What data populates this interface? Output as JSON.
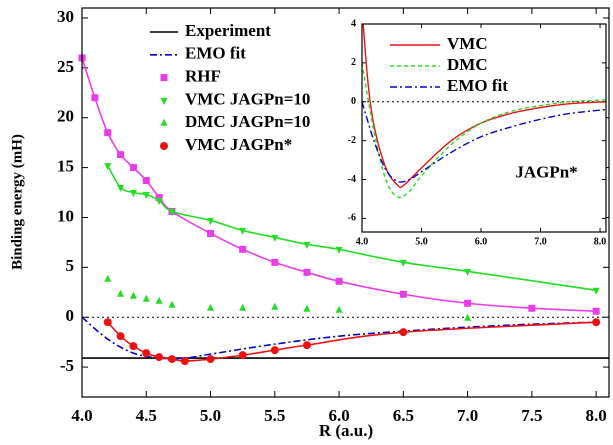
{
  "chart_data": [
    {
      "type": "line",
      "x_label": "R (a.u.)",
      "y_label": "Binding energy (mH)",
      "xlim": [
        4.0,
        8.1
      ],
      "ylim": [
        -8,
        31
      ],
      "xticks": [
        {
          "value": 4.0,
          "label": "4.0"
        },
        {
          "value": 4.5,
          "label": "4.5"
        },
        {
          "value": 5.0,
          "label": "5.0"
        },
        {
          "value": 5.5,
          "label": "5.5"
        },
        {
          "value": 6.0,
          "label": "6.0"
        },
        {
          "value": 6.5,
          "label": "6.5"
        },
        {
          "value": 7.0,
          "label": "7.0"
        },
        {
          "value": 7.5,
          "label": "7.5"
        },
        {
          "value": 8.0,
          "label": "8.0"
        }
      ],
      "yticks": [
        -5,
        0,
        5,
        10,
        15,
        20,
        25,
        30
      ],
      "legend": "upper left",
      "series": [
        {
          "name": "Experiment",
          "color": "#000000",
          "line": "solid",
          "marker": "none",
          "x": [
            4.0,
            8.1
          ],
          "values": [
            -4.1,
            -4.1
          ]
        },
        {
          "name": "EMO fit",
          "color": "#0000cc",
          "line": "dash-dot",
          "marker": "none",
          "x": [
            4.0,
            4.2,
            4.4,
            4.6,
            4.8,
            5.0,
            5.5,
            6.0,
            6.5,
            7.0,
            7.5,
            8.0
          ],
          "values": [
            0.0,
            -2.2,
            -3.6,
            -4.1,
            -4.1,
            -3.7,
            -2.7,
            -1.9,
            -1.4,
            -1.0,
            -0.7,
            -0.5
          ]
        },
        {
          "name": "RHF",
          "color": "#e83ce8",
          "line": "solid",
          "marker": "square",
          "x": [
            4.0,
            4.1,
            4.2,
            4.3,
            4.4,
            4.5,
            4.6,
            4.7,
            5.0,
            5.25,
            5.5,
            5.75,
            6.0,
            6.5,
            7.0,
            7.5,
            8.0
          ],
          "values": [
            26,
            22,
            18.5,
            16.3,
            15,
            13.7,
            12,
            10.6,
            8.4,
            6.8,
            5.5,
            4.5,
            3.6,
            2.3,
            1.4,
            0.9,
            0.6
          ]
        },
        {
          "name": "VMC JAGPn=10",
          "color": "#22dd22",
          "line": "solid",
          "marker": "triangle-down",
          "x": [
            4.2,
            4.3,
            4.4,
            4.5,
            4.6,
            4.7,
            5.0,
            5.25,
            5.5,
            5.75,
            6.0,
            6.5,
            7.0,
            8.0
          ],
          "values": [
            15.2,
            13,
            12.5,
            12.3,
            11.7,
            10.6,
            9.7,
            8.7,
            8,
            7.3,
            6.8,
            5.5,
            4.6,
            2.7
          ]
        },
        {
          "name": "DMC JAGPn=10",
          "color": "#22dd22",
          "line": "none",
          "marker": "triangle-up",
          "x": [
            4.2,
            4.3,
            4.4,
            4.5,
            4.6,
            4.7,
            5.0,
            5.25,
            5.5,
            5.75,
            6.0,
            7.0
          ],
          "values": [
            3.8,
            2.3,
            2.1,
            1.8,
            1.6,
            1.2,
            0.9,
            0.9,
            1.0,
            0.8,
            0.7,
            -0.1
          ]
        },
        {
          "name": "VMC JAGPn*",
          "color": "#ee1111",
          "line": "solid",
          "marker": "circle",
          "x": [
            4.2,
            4.3,
            4.4,
            4.5,
            4.6,
            4.7,
            4.8,
            5.0,
            5.25,
            5.5,
            5.75,
            6.5,
            8.0
          ],
          "values": [
            -0.5,
            -1.9,
            -2.9,
            -3.6,
            -4.0,
            -4.2,
            -4.4,
            -4.2,
            -3.8,
            -3.3,
            -2.8,
            -1.5,
            -0.5
          ]
        }
      ]
    },
    {
      "type": "line",
      "annotation": "JAGPn*",
      "xlim": [
        4.0,
        8.1
      ],
      "ylim": [
        -6.7,
        4.0
      ],
      "xticks": [
        {
          "value": 4.0,
          "label": "4.0"
        },
        {
          "value": 5.0,
          "label": "5.0"
        },
        {
          "value": 6.0,
          "label": "6.0"
        },
        {
          "value": 7.0,
          "label": "7.0"
        },
        {
          "value": 8.0,
          "label": "8.0"
        }
      ],
      "yticks": [
        -6,
        -4,
        -2,
        0,
        2,
        4
      ],
      "legend": "upper right",
      "series": [
        {
          "name": "VMC",
          "color": "#ee1111",
          "line": "solid",
          "marker": "none",
          "x": [
            4.02,
            4.1,
            4.2,
            4.4,
            4.6,
            4.7,
            5.0,
            5.5,
            6.0,
            6.5,
            7.0,
            7.5,
            8.1
          ],
          "values": [
            4.0,
            1.0,
            -1.2,
            -3.4,
            -4.3,
            -4.3,
            -3.4,
            -2.0,
            -1.1,
            -0.6,
            -0.3,
            -0.1,
            0.0
          ]
        },
        {
          "name": "DMC",
          "color": "#22dd22",
          "line": "dash",
          "marker": "none",
          "x": [
            4.0,
            4.2,
            4.4,
            4.6,
            4.8,
            5.0,
            5.5,
            6.0,
            6.5,
            7.0,
            7.5,
            8.1
          ],
          "values": [
            2.0,
            -1.5,
            -4.0,
            -4.9,
            -4.6,
            -3.8,
            -2.2,
            -1.1,
            -0.5,
            -0.2,
            0.0,
            0.1
          ]
        },
        {
          "name": "EMO fit",
          "color": "#0000cc",
          "line": "dash-dot",
          "marker": "none",
          "x": [
            4.0,
            4.2,
            4.4,
            4.6,
            4.8,
            5.0,
            5.5,
            6.0,
            6.5,
            7.0,
            7.5,
            8.1
          ],
          "values": [
            0.0,
            -2.0,
            -3.5,
            -4.1,
            -4.0,
            -3.6,
            -2.6,
            -1.8,
            -1.3,
            -0.9,
            -0.6,
            -0.4
          ]
        }
      ]
    }
  ]
}
